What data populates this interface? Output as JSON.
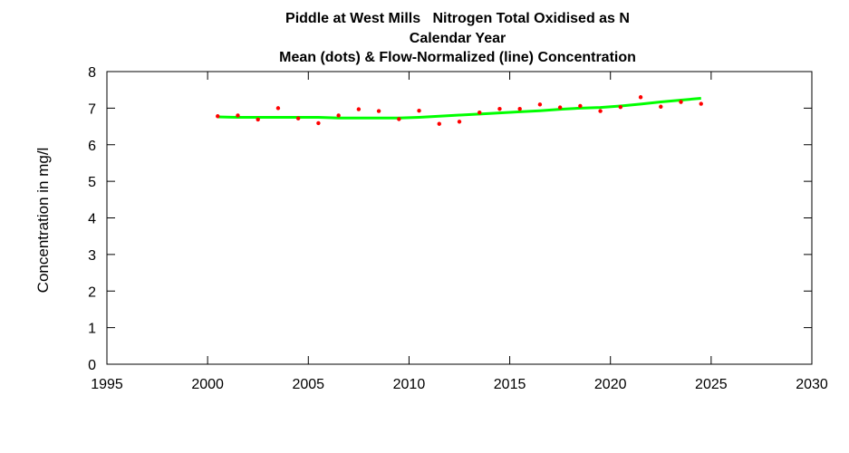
{
  "chart_data": {
    "type": "line",
    "title": [
      "Piddle at West Mills   Nitrogen Total Oxidised as N",
      "Calendar Year",
      "Mean (dots) & Flow-Normalized (line) Concentration"
    ],
    "xlabel": "",
    "ylabel": "Concentration in mg/l",
    "xlim": [
      1995,
      2030
    ],
    "ylim": [
      0,
      8
    ],
    "xticks": [
      1995,
      2000,
      2005,
      2010,
      2015,
      2020,
      2025,
      2030
    ],
    "yticks": [
      0,
      1,
      2,
      3,
      4,
      5,
      6,
      7,
      8
    ],
    "grid": false,
    "legend": "none",
    "colors": {
      "dots": "#ff0000",
      "line": "#00ff00",
      "axes": "#000000"
    },
    "series": [
      {
        "style": "dots",
        "x": [
          2000.5,
          2001.5,
          2002.5,
          2003.5,
          2004.5,
          2005.5,
          2006.5,
          2007.5,
          2008.5,
          2009.5,
          2010.5,
          2011.5,
          2012.5,
          2013.5,
          2014.5,
          2015.5,
          2016.5,
          2017.5,
          2018.5,
          2019.5,
          2020.5,
          2021.5,
          2022.5,
          2023.5,
          2024.5
        ],
        "y": [
          6.78,
          6.8,
          6.69,
          7.0,
          6.72,
          6.59,
          6.8,
          6.97,
          6.92,
          6.7,
          6.93,
          6.57,
          6.63,
          6.88,
          6.98,
          6.98,
          7.1,
          7.02,
          7.06,
          6.92,
          7.03,
          7.3,
          7.04,
          7.17,
          7.12
        ]
      },
      {
        "style": "line",
        "x": [
          2000.5,
          2001.5,
          2002.5,
          2003.5,
          2004.5,
          2005.5,
          2006.5,
          2007.5,
          2008.5,
          2009.5,
          2010.5,
          2011.5,
          2012.5,
          2013.5,
          2014.5,
          2015.5,
          2016.5,
          2017.5,
          2018.5,
          2019.5,
          2020.5,
          2021.5,
          2022.5,
          2023.5,
          2024.5
        ],
        "y": [
          6.76,
          6.75,
          6.75,
          6.75,
          6.75,
          6.75,
          6.73,
          6.73,
          6.73,
          6.73,
          6.75,
          6.78,
          6.81,
          6.84,
          6.87,
          6.9,
          6.93,
          6.97,
          7.0,
          7.02,
          7.06,
          7.11,
          7.17,
          7.22,
          7.27
        ]
      }
    ]
  }
}
